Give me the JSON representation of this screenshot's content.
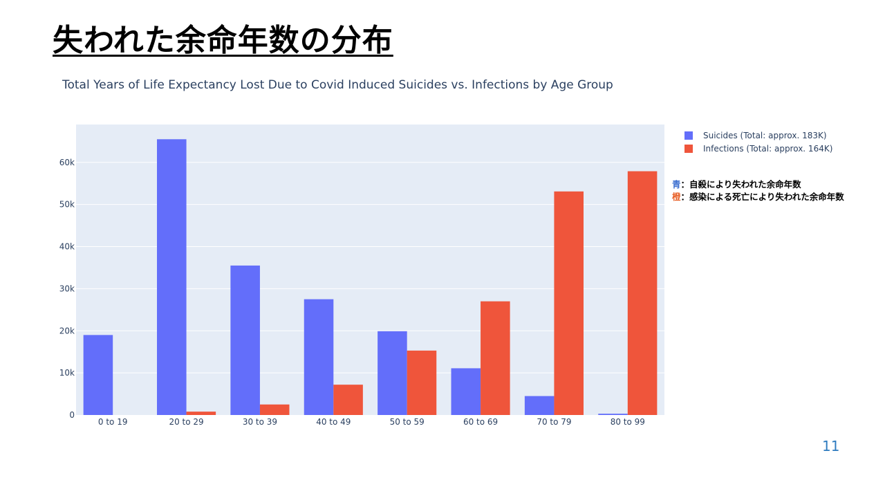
{
  "slide": {
    "title": "失われた余命年数の分布",
    "page_number": "11"
  },
  "annotation": {
    "blue_key": "青",
    "blue_text": "：自殺により失われた余命年数",
    "orange_key": "橙",
    "orange_text": "：感染による死亡により失われた余命年数"
  },
  "chart_data": {
    "type": "bar",
    "title": "Total Years of Life Expectancy Lost Due to Covid Induced Suicides vs. Infections by Age Group",
    "xlabel": "",
    "ylabel": "",
    "categories": [
      "0 to 19",
      "20 to 29",
      "30 to 39",
      "40 to 49",
      "50 to 59",
      "60 to 69",
      "70 to 79",
      "80 to 99"
    ],
    "series": [
      {
        "name": "Suicides (Total: approx. 183K)",
        "color": "#636efa",
        "values": [
          19000,
          65500,
          35500,
          27500,
          19900,
          11100,
          4500,
          300
        ]
      },
      {
        "name": "Infections (Total: approx. 164K)",
        "color": "#ef553b",
        "values": [
          0,
          800,
          2500,
          7200,
          15300,
          27000,
          53100,
          57900
        ]
      }
    ],
    "ylim": [
      0,
      69000
    ],
    "yticks": [
      0,
      10000,
      20000,
      30000,
      40000,
      50000,
      60000
    ],
    "ytick_labels": [
      "0",
      "10k",
      "20k",
      "30k",
      "40k",
      "50k",
      "60k"
    ],
    "grid": true,
    "legend_position": "right",
    "plot_background": "#e5ecf6"
  }
}
